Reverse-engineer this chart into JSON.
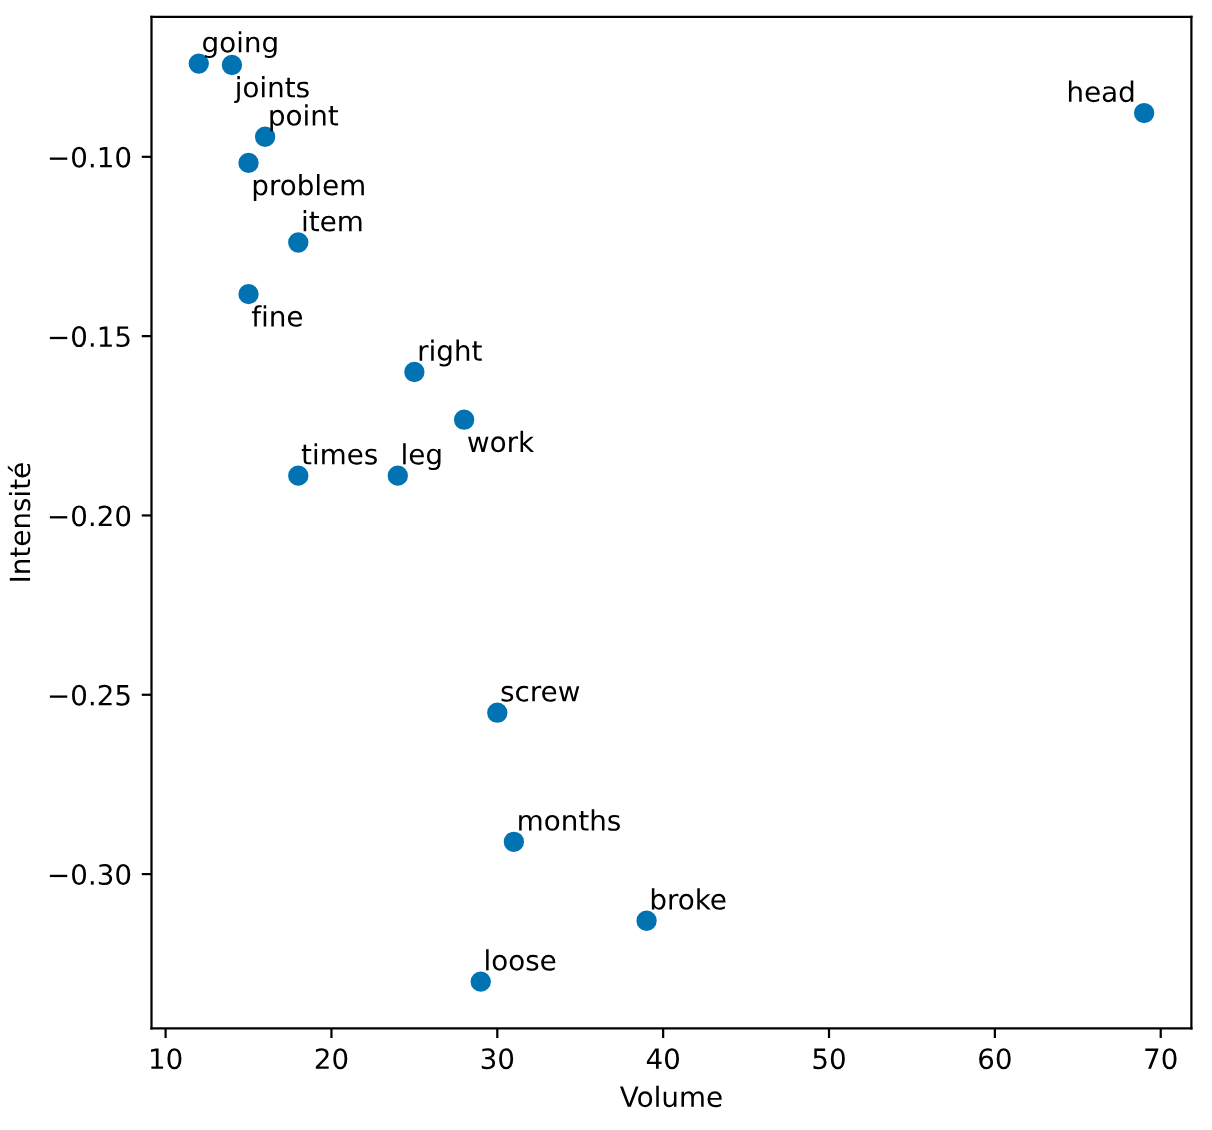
{
  "chart_data": {
    "type": "scatter",
    "xlabel": "Volume",
    "ylabel": "Intensité",
    "x": [
      12,
      14,
      16,
      15,
      18,
      15,
      25,
      28,
      18,
      24,
      30,
      31,
      39,
      29,
      69
    ],
    "series": [
      {
        "color": "#0173b2",
        "values": [
          -0.074,
          -0.0744,
          -0.0944,
          -0.1017,
          -0.1239,
          -0.1383,
          -0.16,
          -0.1733,
          -0.1889,
          -0.1889,
          -0.255,
          -0.291,
          -0.313,
          -0.33,
          -0.0878
        ]
      }
    ],
    "annotations": [
      {
        "text": "going",
        "x": 12,
        "y": -0.074
      },
      {
        "text": "joints",
        "x": 14,
        "y": -0.0744
      },
      {
        "text": "point",
        "x": 16,
        "y": -0.0944
      },
      {
        "text": "problem",
        "x": 15,
        "y": -0.1017
      },
      {
        "text": "item",
        "x": 18,
        "y": -0.1239
      },
      {
        "text": "fine",
        "x": 15,
        "y": -0.1383
      },
      {
        "text": "right",
        "x": 25,
        "y": -0.16
      },
      {
        "text": "work",
        "x": 28,
        "y": -0.1733
      },
      {
        "text": "times",
        "x": 18,
        "y": -0.1889
      },
      {
        "text": "leg",
        "x": 24,
        "y": -0.1889
      },
      {
        "text": "screw",
        "x": 30,
        "y": -0.255
      },
      {
        "text": "months",
        "x": 31,
        "y": -0.291
      },
      {
        "text": "broke",
        "x": 39,
        "y": -0.313
      },
      {
        "text": "loose",
        "x": 29,
        "y": -0.33
      },
      {
        "text": "head",
        "x": 69,
        "y": -0.0878
      }
    ],
    "xlim": [
      9.15,
      71.85
    ],
    "ylim": [
      -0.343,
      -0.061
    ],
    "xticks": [
      10,
      20,
      30,
      40,
      50,
      60,
      70
    ],
    "yticks": [
      {
        "value": -0.3,
        "label": "−0.30"
      },
      {
        "value": -0.25,
        "label": "−0.25"
      },
      {
        "value": -0.2,
        "label": "−0.20"
      },
      {
        "value": -0.15,
        "label": "−0.15"
      },
      {
        "value": -0.1,
        "label": "−0.10"
      }
    ],
    "marker": "circle",
    "grid": false,
    "legend": false
  }
}
